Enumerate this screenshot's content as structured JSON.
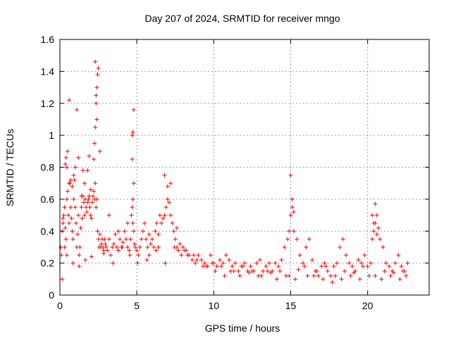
{
  "chart_data": {
    "type": "scatter",
    "title": "Day 207 of 2024, SRMTID for receiver mngo",
    "xlabel": "GPS time / hours",
    "ylabel": "SRMTID / TECUs",
    "xlim": [
      0,
      24
    ],
    "ylim": [
      0,
      1.6
    ],
    "xticks": [
      "0",
      "5",
      "10",
      "15",
      "20"
    ],
    "xtick_values": [
      0,
      5,
      10,
      15,
      20
    ],
    "yticks": [
      "0",
      "0.2",
      "0.4",
      "0.6",
      "0.8",
      "1",
      "1.2",
      "1.4",
      "1.6"
    ],
    "ytick_values": [
      0,
      0.2,
      0.4,
      0.6,
      0.8,
      1.0,
      1.2,
      1.4,
      1.6
    ],
    "grid": true,
    "marker": "+",
    "color": "#ff0000",
    "series": [
      {
        "name": "SRMTID",
        "x": [
          0.05,
          0.1,
          0.15,
          0.2,
          0.25,
          0.3,
          0.35,
          0.4,
          0.45,
          0.5,
          0.55,
          0.6,
          0.65,
          0.7,
          0.75,
          0.8,
          0.85,
          0.9,
          0.95,
          1.0,
          1.05,
          1.1,
          1.15,
          1.2,
          1.25,
          1.3,
          1.35,
          1.4,
          1.45,
          1.5,
          1.55,
          1.6,
          1.65,
          1.7,
          1.75,
          1.8,
          1.85,
          1.9,
          1.95,
          2.0,
          2.05,
          2.1,
          2.15,
          2.2,
          2.25,
          2.3,
          2.35,
          2.4,
          2.45,
          2.5,
          2.55,
          2.6,
          2.65,
          2.7,
          2.75,
          2.8,
          2.85,
          2.9,
          2.95,
          3.0,
          3.1,
          3.2,
          3.3,
          3.4,
          3.5,
          3.6,
          3.7,
          3.8,
          3.9,
          4.0,
          4.1,
          4.2,
          4.3,
          4.4,
          4.5,
          4.6,
          4.65,
          4.7,
          4.75,
          4.8,
          4.85,
          4.9,
          5.0,
          5.1,
          5.2,
          5.3,
          5.4,
          5.5,
          5.6,
          5.7,
          5.8,
          5.9,
          6.0,
          6.1,
          6.2,
          6.3,
          6.4,
          6.5,
          6.6,
          6.7,
          6.8,
          6.9,
          7.0,
          7.1,
          7.2,
          7.3,
          7.4,
          7.5,
          7.6,
          7.7,
          7.8,
          7.9,
          8.0,
          8.2,
          8.4,
          8.6,
          8.8,
          9.0,
          9.2,
          9.4,
          9.6,
          9.8,
          10.0,
          10.2,
          10.4,
          10.6,
          10.8,
          11.0,
          11.2,
          11.4,
          11.6,
          11.8,
          12.0,
          12.2,
          12.4,
          12.6,
          12.8,
          13.0,
          13.2,
          13.4,
          13.6,
          13.8,
          14.0,
          14.2,
          14.4,
          14.6,
          14.8,
          14.9,
          15.0,
          15.1,
          15.2,
          15.4,
          15.6,
          15.8,
          16.0,
          16.2,
          16.4,
          16.6,
          16.8,
          17.0,
          17.2,
          17.4,
          17.6,
          17.8,
          18.0,
          18.2,
          18.4,
          18.6,
          18.8,
          19.0,
          19.2,
          19.4,
          19.6,
          19.8,
          20.0,
          20.2,
          20.3,
          20.4,
          20.5,
          20.6,
          20.7,
          20.8,
          21.0,
          21.2,
          21.4,
          21.6,
          21.8,
          22.0,
          22.2,
          22.4,
          22.6,
          0.3,
          0.35,
          0.4,
          0.45,
          0.5,
          0.6,
          0.7,
          0.8,
          0.9,
          1.0,
          1.2,
          1.4,
          1.6,
          1.8,
          2.0,
          2.2,
          2.25,
          2.3,
          2.35,
          2.4,
          2.45,
          2.5,
          2.3,
          2.4,
          2.35,
          4.7,
          4.75,
          4.8,
          4.7,
          4.75,
          4.8,
          6.8,
          7.0,
          7.2,
          15.0,
          15.1,
          15.2,
          20.3,
          20.4,
          20.5,
          20.6,
          0.2,
          0.6,
          1.1,
          1.5,
          1.9,
          2.6,
          3.2,
          3.8,
          4.4,
          5.2,
          5.8,
          6.4,
          7.6,
          8.1,
          8.7,
          9.3,
          9.9,
          10.5,
          11.1,
          11.7,
          12.3,
          12.9,
          13.5,
          14.1,
          14.7,
          15.3,
          15.9,
          16.5,
          17.1,
          17.7,
          18.3,
          18.9,
          19.5,
          20.1,
          20.9,
          21.5,
          22.1,
          22.5,
          0.15,
          0.45,
          0.85,
          1.25,
          1.65,
          2.05,
          2.85,
          3.45,
          4.05,
          4.55,
          5.05,
          5.65,
          6.25,
          6.85,
          7.45,
          8.3,
          8.9,
          9.5,
          10.1,
          10.7,
          11.3,
          11.9,
          12.5,
          13.1,
          13.7,
          14.3,
          14.9,
          15.5,
          16.1,
          16.7,
          17.3,
          17.9,
          18.5,
          19.1,
          19.7,
          20.5,
          21.1,
          21.7,
          22.3
        ],
        "y": [
          0.3,
          0.25,
          0.4,
          0.45,
          0.5,
          0.55,
          0.42,
          0.35,
          0.6,
          0.65,
          0.5,
          0.45,
          0.7,
          0.55,
          0.48,
          0.4,
          0.35,
          0.6,
          0.72,
          0.55,
          0.45,
          0.3,
          0.38,
          0.5,
          0.25,
          0.3,
          0.42,
          0.55,
          0.48,
          0.62,
          0.58,
          0.5,
          0.6,
          0.55,
          0.52,
          0.58,
          0.6,
          0.62,
          0.55,
          0.5,
          0.48,
          0.58,
          0.62,
          0.65,
          0.6,
          0.7,
          0.55,
          0.6,
          0.4,
          0.35,
          0.3,
          0.38,
          0.3,
          0.32,
          0.35,
          0.3,
          0.28,
          0.35,
          0.32,
          0.3,
          0.28,
          0.35,
          0.25,
          0.3,
          0.32,
          0.38,
          0.3,
          0.28,
          0.35,
          0.3,
          0.33,
          0.4,
          0.35,
          0.3,
          0.28,
          0.35,
          0.5,
          0.55,
          0.45,
          0.4,
          0.32,
          0.3,
          0.28,
          0.25,
          0.3,
          0.35,
          0.4,
          0.45,
          0.35,
          0.3,
          0.25,
          0.32,
          0.35,
          0.3,
          0.4,
          0.45,
          0.38,
          0.5,
          0.45,
          0.48,
          0.5,
          0.55,
          0.6,
          0.58,
          0.5,
          0.45,
          0.4,
          0.35,
          0.3,
          0.28,
          0.32,
          0.25,
          0.3,
          0.28,
          0.25,
          0.22,
          0.2,
          0.25,
          0.22,
          0.2,
          0.18,
          0.25,
          0.2,
          0.18,
          0.22,
          0.2,
          0.25,
          0.22,
          0.18,
          0.2,
          0.15,
          0.18,
          0.2,
          0.15,
          0.18,
          0.15,
          0.2,
          0.22,
          0.15,
          0.18,
          0.2,
          0.15,
          0.2,
          0.18,
          0.22,
          0.3,
          0.35,
          0.4,
          0.5,
          0.55,
          0.4,
          0.35,
          0.25,
          0.2,
          0.3,
          0.35,
          0.22,
          0.15,
          0.12,
          0.18,
          0.2,
          0.15,
          0.12,
          0.18,
          0.2,
          0.3,
          0.35,
          0.25,
          0.2,
          0.18,
          0.15,
          0.22,
          0.2,
          0.25,
          0.18,
          0.2,
          0.35,
          0.4,
          0.45,
          0.38,
          0.42,
          0.35,
          0.3,
          0.2,
          0.18,
          0.15,
          0.2,
          0.25,
          0.18,
          0.15,
          0.2,
          0.3,
          0.82,
          0.86,
          0.8,
          0.9,
          0.7,
          0.72,
          0.68,
          0.75,
          0.8,
          0.86,
          0.62,
          0.7,
          0.78,
          0.66,
          0.85,
          0.95,
          1.05,
          1.2,
          1.3,
          1.38,
          1.42,
          1.46,
          1.1,
          1.25,
          1.0,
          0.6,
          0.7,
          0.85,
          1.02,
          1.16,
          0.75,
          0.68,
          0.7,
          0.75,
          0.6,
          0.52,
          0.5,
          0.45,
          0.57,
          0.5,
          0.48,
          1.22,
          1.16,
          0.78,
          0.87,
          0.9,
          0.5,
          0.4,
          0.45,
          0.3,
          0.38,
          0.3,
          0.42,
          0.28,
          0.25,
          0.18,
          0.2,
          0.18,
          0.15,
          0.12,
          0.14,
          0.12,
          0.15,
          0.1,
          0.12,
          0.1,
          0.18,
          0.12,
          0.1,
          0.08,
          0.1,
          0.12,
          0.1,
          0.12,
          0.1,
          0.12,
          0.1,
          0.12,
          0.1,
          0.25,
          0.2,
          0.18,
          0.22,
          0.24,
          0.26,
          0.2,
          0.3,
          0.25,
          0.2,
          0.22,
          0.28,
          0.2,
          0.3,
          0.25,
          0.22,
          0.18,
          0.15,
          0.12,
          0.15,
          0.18,
          0.15,
          0.12,
          0.14,
          0.15,
          0.12,
          0.16,
          0.12,
          0.15,
          0.18,
          0.12,
          0.15,
          0.14,
          0.18,
          0.12,
          0.15,
          0.14,
          0.15
        ]
      }
    ]
  }
}
